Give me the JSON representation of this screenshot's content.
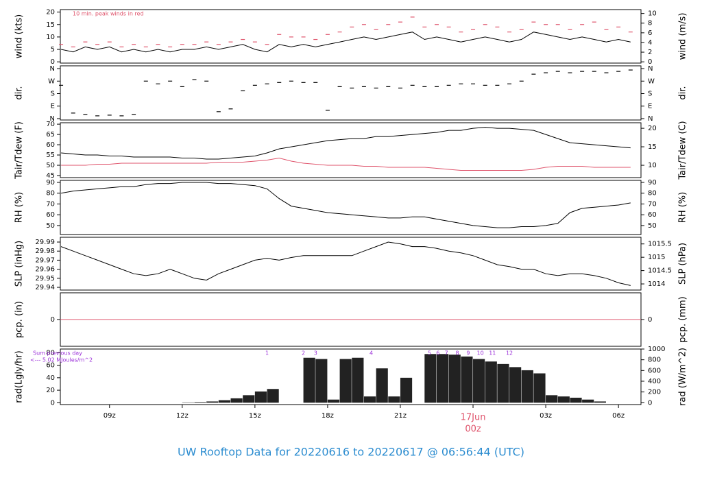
{
  "chart_data": [
    {
      "type": "line",
      "ylabel": "wind (kts)",
      "y2label": "wind (m/s)",
      "annotation": "10 min. peak winds in red",
      "xlim": [
        6.97,
        30.93
      ],
      "ylim": [
        -0.5,
        21
      ],
      "yticks": [
        0,
        5,
        10,
        15,
        20
      ],
      "y2lim": [
        -0.26,
        10.8
      ],
      "y2ticks": [
        0,
        2,
        4,
        6,
        8,
        10
      ],
      "x": [
        7,
        7.5,
        8,
        8.5,
        9,
        9.5,
        10,
        10.5,
        11,
        11.5,
        12,
        12.5,
        13,
        13.5,
        14,
        14.5,
        15,
        15.5,
        16,
        16.5,
        17,
        17.5,
        18,
        18.5,
        19,
        19.5,
        20,
        20.5,
        21,
        21.5,
        22,
        22.5,
        23,
        23.5,
        24,
        24.5,
        25,
        25.5,
        26,
        26.5,
        27,
        27.5,
        28,
        28.5,
        29,
        29.5,
        30,
        30.5
      ],
      "series": [
        {
          "color": "#000000",
          "marker": "line",
          "values": [
            5,
            4,
            6,
            5,
            6,
            4,
            5,
            4,
            5,
            4,
            5,
            5,
            6,
            5,
            6,
            7,
            5,
            4,
            7,
            6,
            7,
            6,
            7,
            8,
            9,
            10,
            9,
            10,
            11,
            12,
            9,
            10,
            9,
            8,
            9,
            10,
            9,
            8,
            9,
            12,
            11,
            10,
            9,
            10,
            9,
            8,
            9,
            8
          ]
        },
        {
          "color": "#df536b",
          "marker": "dash",
          "values": [
            7,
            6,
            8,
            7,
            8,
            6,
            7,
            6,
            7,
            6,
            7,
            7,
            8,
            7,
            8,
            9,
            8,
            7,
            11,
            10,
            10,
            9,
            11,
            12,
            14,
            15,
            13,
            15,
            16,
            18,
            14,
            15,
            14,
            12,
            13,
            15,
            14,
            12,
            13,
            16,
            15,
            15,
            13,
            15,
            16,
            13,
            14,
            12
          ]
        }
      ]
    },
    {
      "type": "line",
      "ylabel": "dir.",
      "y2label": "dir.",
      "xlim": [
        6.97,
        30.93
      ],
      "ylim": [
        -10,
        380
      ],
      "yticks": [
        {
          "value": 0,
          "label": "N"
        },
        {
          "value": 90,
          "label": "E"
        },
        {
          "value": 180,
          "label": "S"
        },
        {
          "value": 270,
          "label": "W"
        },
        {
          "value": 360,
          "label": "N"
        }
      ],
      "y2lim": [
        -10,
        380
      ],
      "y2ticks": [
        {
          "value": 0,
          "label": "N"
        },
        {
          "value": 90,
          "label": "E"
        },
        {
          "value": 180,
          "label": "S"
        },
        {
          "value": 270,
          "label": "W"
        },
        {
          "value": 360,
          "label": "N"
        }
      ],
      "x": [
        7,
        7.5,
        8,
        8.5,
        9,
        9.5,
        10,
        10.5,
        11,
        11.5,
        12,
        12.5,
        13,
        13.5,
        14,
        14.5,
        15,
        15.5,
        16,
        16.5,
        17,
        17.5,
        18,
        18.5,
        19,
        19.5,
        20,
        20.5,
        21,
        21.5,
        22,
        22.5,
        23,
        23.5,
        24,
        24.5,
        25,
        25.5,
        26,
        26.5,
        27,
        27.5,
        28,
        28.5,
        29,
        29.5,
        30,
        30.5
      ],
      "series": [
        {
          "color": "#000000",
          "marker": "dash",
          "values": [
            240,
            40,
            30,
            20,
            25,
            20,
            30,
            270,
            250,
            270,
            230,
            280,
            270,
            50,
            70,
            200,
            240,
            250,
            260,
            270,
            260,
            260,
            60,
            230,
            220,
            230,
            220,
            230,
            220,
            240,
            230,
            230,
            240,
            250,
            250,
            240,
            240,
            250,
            270,
            320,
            330,
            340,
            330,
            340,
            340,
            330,
            340,
            350
          ]
        }
      ]
    },
    {
      "type": "line",
      "ylabel": "Tair/Tdew (F)",
      "y2label": "Tair/Tdew (C)",
      "xlim": [
        6.97,
        30.93
      ],
      "ylim": [
        44,
        70.7
      ],
      "yticks": [
        45,
        50,
        55,
        60,
        65,
        70
      ],
      "y2lim": [
        6.67,
        21.5
      ],
      "y2ticks": [
        10,
        15,
        20
      ],
      "x": [
        7,
        7.5,
        8,
        8.5,
        9,
        9.5,
        10,
        10.5,
        11,
        11.5,
        12,
        12.5,
        13,
        13.5,
        14,
        14.5,
        15,
        15.5,
        16,
        16.5,
        17,
        17.5,
        18,
        18.5,
        19,
        19.5,
        20,
        20.5,
        21,
        21.5,
        22,
        22.5,
        23,
        23.5,
        24,
        24.5,
        25,
        25.5,
        26,
        26.5,
        27,
        27.5,
        28,
        28.5,
        29,
        29.5,
        30,
        30.5
      ],
      "series": [
        {
          "color": "#000000",
          "marker": "line",
          "values": [
            56,
            55.5,
            55,
            55,
            54.5,
            54.5,
            54,
            54,
            54,
            54,
            53.5,
            53.5,
            53,
            53,
            53.5,
            54,
            54.5,
            56,
            58,
            59,
            60,
            61,
            62,
            62.5,
            63,
            63,
            64,
            64,
            64.5,
            65,
            65.5,
            66,
            67,
            67,
            68,
            68.5,
            68,
            68,
            67.5,
            67,
            65,
            63,
            61,
            60.5,
            60,
            59.5,
            59,
            58.5
          ]
        },
        {
          "color": "#df536b",
          "marker": "line",
          "values": [
            50,
            50,
            50,
            50.5,
            50.5,
            51,
            51,
            51,
            51,
            51,
            51,
            51,
            51,
            51.5,
            51.5,
            51.5,
            52,
            52.5,
            53.5,
            52,
            51,
            50.5,
            50,
            50,
            50,
            49.5,
            49.5,
            49,
            49,
            49,
            49,
            48.5,
            48,
            47.5,
            47.5,
            47.5,
            47.5,
            47.5,
            47.5,
            48,
            49,
            49.5,
            49.5,
            49.5,
            49,
            49,
            49,
            49
          ]
        }
      ]
    },
    {
      "type": "line",
      "ylabel": "RH (%)",
      "y2label": "RH (%)",
      "xlim": [
        6.97,
        30.93
      ],
      "ylim": [
        41.7,
        91.9
      ],
      "yticks": [
        50,
        60,
        70,
        80,
        90
      ],
      "y2lim": [
        41.7,
        91.9
      ],
      "y2ticks": [
        50,
        60,
        70,
        80,
        90
      ],
      "x": [
        7,
        7.5,
        8,
        8.5,
        9,
        9.5,
        10,
        10.5,
        11,
        11.5,
        12,
        12.5,
        13,
        13.5,
        14,
        14.5,
        15,
        15.5,
        16,
        16.5,
        17,
        17.5,
        18,
        18.5,
        19,
        19.5,
        20,
        20.5,
        21,
        21.5,
        22,
        22.5,
        23,
        23.5,
        24,
        24.5,
        25,
        25.5,
        26,
        26.5,
        27,
        27.5,
        28,
        28.5,
        29,
        29.5,
        30,
        30.5
      ],
      "series": [
        {
          "color": "#000000",
          "marker": "line",
          "values": [
            80,
            82,
            83,
            84,
            85,
            86,
            86,
            88,
            89,
            89,
            90,
            90,
            90,
            89,
            89,
            88,
            87,
            84,
            75,
            68,
            66,
            64,
            62,
            61,
            60,
            59,
            58,
            57,
            57,
            58,
            58,
            56,
            54,
            52,
            50,
            49,
            48,
            48,
            49,
            49,
            50,
            52,
            62,
            66,
            67,
            68,
            69,
            71
          ]
        }
      ]
    },
    {
      "type": "line",
      "ylabel": "SLP (inHg)",
      "y2label": "SLP (hPa)",
      "xlim": [
        6.97,
        30.93
      ],
      "ylim": [
        29.937,
        29.9953
      ],
      "yticks": [
        29.94,
        29.95,
        29.96,
        29.97,
        29.98,
        29.99
      ],
      "y2lim": [
        1013.77,
        1015.75
      ],
      "y2ticks": [
        1014,
        1014.5,
        1015,
        1015.5
      ],
      "x": [
        7,
        7.5,
        8,
        8.5,
        9,
        9.5,
        10,
        10.5,
        11,
        11.5,
        12,
        12.5,
        13,
        13.5,
        14,
        14.5,
        15,
        15.5,
        16,
        16.5,
        17,
        17.5,
        18,
        18.5,
        19,
        19.5,
        20,
        20.5,
        21,
        21.5,
        22,
        22.5,
        23,
        23.5,
        24,
        24.5,
        25,
        25.5,
        26,
        26.5,
        27,
        27.5,
        28,
        28.5,
        29,
        29.5,
        30,
        30.5
      ],
      "series": [
        {
          "color": "#000000",
          "marker": "line",
          "values": [
            29.985,
            29.98,
            29.975,
            29.97,
            29.965,
            29.96,
            29.955,
            29.953,
            29.955,
            29.96,
            29.955,
            29.95,
            29.948,
            29.955,
            29.96,
            29.965,
            29.97,
            29.972,
            29.97,
            29.973,
            29.975,
            29.975,
            29.975,
            29.975,
            29.975,
            29.98,
            29.985,
            29.99,
            29.988,
            29.985,
            29.985,
            29.983,
            29.98,
            29.978,
            29.975,
            29.97,
            29.965,
            29.963,
            29.96,
            29.96,
            29.955,
            29.953,
            29.955,
            29.955,
            29.953,
            29.95,
            29.945,
            29.942
          ]
        }
      ]
    },
    {
      "type": "line",
      "ylabel": "pcp. (in)",
      "y2label": "pcp. (mm)",
      "xlim": [
        6.97,
        30.93
      ],
      "ylim": [
        -1,
        1
      ],
      "yticks": [
        0
      ],
      "y2lim": [
        -25.4,
        25.4
      ],
      "y2ticks": [
        0
      ],
      "x": [
        6.97,
        30.93
      ],
      "series": [
        {
          "color": "#df536b",
          "marker": "line",
          "values": [
            0,
            0
          ]
        }
      ]
    },
    {
      "type": "bar",
      "ylabel": "rad(Lgly/hr)",
      "y2label": "rad (W/m^2)",
      "annotations": [
        "Sum previous day",
        "<--- 5.02 MJoules/m^2"
      ],
      "markers": [
        {
          "x": 15.5,
          "label": "1"
        },
        {
          "x": 17.0,
          "label": "2"
        },
        {
          "x": 17.5,
          "label": "3"
        },
        {
          "x": 19.8,
          "label": "4"
        },
        {
          "x": 22.2,
          "label": "5"
        },
        {
          "x": 22.55,
          "label": "6"
        },
        {
          "x": 22.9,
          "label": "7"
        },
        {
          "x": 23.35,
          "label": "8"
        },
        {
          "x": 23.8,
          "label": "9"
        },
        {
          "x": 24.3,
          "label": "10"
        },
        {
          "x": 24.8,
          "label": "11"
        },
        {
          "x": 25.5,
          "label": "12"
        }
      ],
      "xlim": [
        6.97,
        30.93
      ],
      "xticks": [
        {
          "value": 9,
          "label": "09z"
        },
        {
          "value": 12,
          "label": "12z"
        },
        {
          "value": 15,
          "label": "15z"
        },
        {
          "value": 18,
          "label": "18z"
        },
        {
          "value": 21,
          "label": "21z"
        },
        {
          "value": 24,
          "label": "00z",
          "date": "17Jun"
        },
        {
          "value": 27,
          "label": "03z"
        },
        {
          "value": 30,
          "label": "06z"
        }
      ],
      "ylim": [
        -3,
        86
      ],
      "yticks": [
        0,
        20,
        40,
        60,
        80
      ],
      "y2lim": [
        -35,
        1000
      ],
      "y2ticks": [
        0,
        200,
        400,
        600,
        800,
        1000
      ],
      "x": [
        7,
        7.5,
        8,
        8.5,
        9,
        9.5,
        10,
        10.5,
        11,
        11.5,
        12,
        12.5,
        13,
        13.5,
        14,
        14.5,
        15,
        15.5,
        16,
        16.5,
        17,
        17.5,
        18,
        18.5,
        19,
        19.5,
        20,
        20.5,
        21,
        21.5,
        22,
        22.5,
        23,
        23.5,
        24,
        24.5,
        25,
        25.5,
        26,
        26.5,
        27,
        27.5,
        28,
        28.5,
        29,
        29.5,
        30,
        30.5
      ],
      "series": [
        {
          "color": "#222222",
          "values": [
            0,
            0,
            0,
            0,
            0,
            0,
            0,
            0,
            0,
            0,
            0.5,
            1,
            2,
            4,
            7,
            12,
            18,
            22,
            0,
            0,
            72,
            70,
            5,
            70,
            72,
            10,
            55,
            10,
            40,
            0,
            78,
            78,
            77,
            74,
            70,
            66,
            62,
            57,
            52,
            47,
            12,
            10,
            8,
            5,
            2,
            0,
            0,
            0
          ]
        }
      ],
      "title": "UW Rooftop Data for 20220616  to  20220617 @ 06:56:44  (UTC)"
    }
  ]
}
